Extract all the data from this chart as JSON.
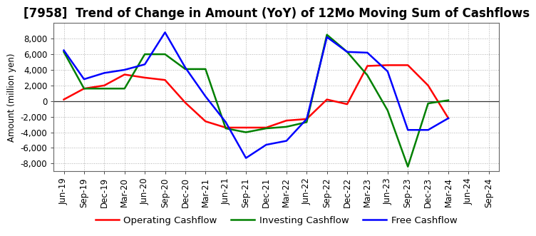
{
  "title": "[7958]  Trend of Change in Amount (YoY) of 12Mo Moving Sum of Cashflows",
  "ylabel": "Amount (million yen)",
  "x_labels": [
    "Jun-19",
    "Sep-19",
    "Dec-19",
    "Mar-20",
    "Jun-20",
    "Sep-20",
    "Dec-20",
    "Mar-21",
    "Jun-21",
    "Sep-21",
    "Dec-21",
    "Mar-22",
    "Jun-22",
    "Sep-22",
    "Dec-22",
    "Mar-23",
    "Jun-23",
    "Sep-23",
    "Dec-23",
    "Mar-24",
    "Jun-24",
    "Sep-24"
  ],
  "operating": [
    200,
    1600,
    2000,
    3400,
    3000,
    2700,
    -200,
    -2600,
    -3400,
    -3400,
    -3400,
    -2500,
    -2300,
    200,
    -400,
    4500,
    4600,
    4600,
    2000,
    -2200,
    null,
    null
  ],
  "investing": [
    6300,
    1600,
    1600,
    1600,
    6000,
    6000,
    4100,
    4100,
    -3500,
    -4000,
    -3500,
    -3300,
    -2700,
    8500,
    6300,
    3300,
    -1200,
    -8400,
    -300,
    100,
    null,
    null
  ],
  "free": [
    6500,
    2800,
    3600,
    4000,
    4700,
    8800,
    4300,
    600,
    -2700,
    -7300,
    -5600,
    -5100,
    -2300,
    8200,
    6300,
    6200,
    3800,
    -3700,
    -3700,
    -2200,
    null,
    null
  ],
  "operating_color": "#ff0000",
  "investing_color": "#008000",
  "free_color": "#0000ff",
  "background_color": "#ffffff",
  "grid_color": "#b0b0b0",
  "ylim": [
    -9000,
    10000
  ],
  "yticks": [
    -8000,
    -6000,
    -4000,
    -2000,
    0,
    2000,
    4000,
    6000,
    8000
  ],
  "legend_labels": [
    "Operating Cashflow",
    "Investing Cashflow",
    "Free Cashflow"
  ],
  "title_fontsize": 12,
  "axis_fontsize": 8.5,
  "legend_fontsize": 9.5
}
